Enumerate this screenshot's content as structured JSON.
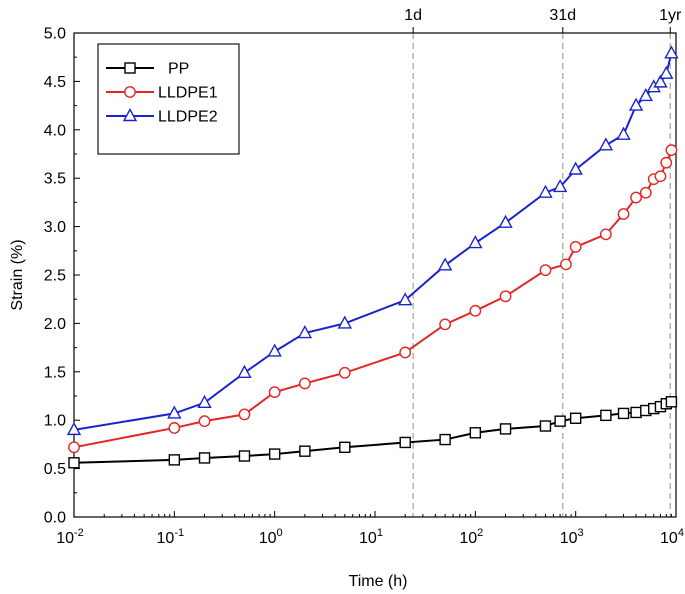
{
  "chart_data": {
    "type": "line",
    "title": "",
    "xlabel": "Time (h)",
    "ylabel": "Strain (%)",
    "x_scale": "log",
    "xlim": [
      0.01,
      10000
    ],
    "ylim": [
      0.0,
      5.0
    ],
    "y_ticks": [
      "0.0",
      "0.5",
      "1.0",
      "1.5",
      "2.0",
      "2.5",
      "3.0",
      "3.5",
      "4.0",
      "4.5",
      "5.0"
    ],
    "x_ticks": [
      {
        "base": "10",
        "exp": "-2"
      },
      {
        "base": "10",
        "exp": "-1"
      },
      {
        "base": "10",
        "exp": "0"
      },
      {
        "base": "10",
        "exp": "1"
      },
      {
        "base": "10",
        "exp": "2"
      },
      {
        "base": "10",
        "exp": "3"
      },
      {
        "base": "10",
        "exp": "4"
      }
    ],
    "reference_lines": [
      {
        "label": "1d",
        "x": 24
      },
      {
        "label": "31d",
        "x": 744
      },
      {
        "label": "1yr",
        "x": 8760
      }
    ],
    "legend_position": "top-left",
    "series": [
      {
        "name": "PP",
        "color": "#000000",
        "marker": "square",
        "x": [
          0.01,
          0.1,
          0.2,
          0.5,
          1,
          2,
          5,
          20,
          50,
          100,
          200,
          500,
          700,
          1000,
          2000,
          3000,
          4000,
          5000,
          6000,
          7000,
          8000,
          9000
        ],
        "y": [
          0.56,
          0.59,
          0.61,
          0.63,
          0.65,
          0.68,
          0.72,
          0.77,
          0.8,
          0.87,
          0.91,
          0.94,
          0.99,
          1.02,
          1.05,
          1.07,
          1.08,
          1.1,
          1.12,
          1.14,
          1.17,
          1.19
        ]
      },
      {
        "name": "LLDPE1",
        "color": "#e32626",
        "marker": "circle",
        "x": [
          0.01,
          0.1,
          0.2,
          0.5,
          1,
          2,
          5,
          20,
          50,
          100,
          200,
          500,
          800,
          1000,
          2000,
          3000,
          4000,
          5000,
          6000,
          7000,
          8000,
          9000
        ],
        "y": [
          0.72,
          0.92,
          0.99,
          1.06,
          1.29,
          1.38,
          1.49,
          1.7,
          1.99,
          2.13,
          2.28,
          2.55,
          2.61,
          2.79,
          2.92,
          3.13,
          3.3,
          3.35,
          3.49,
          3.52,
          3.66,
          3.79
        ]
      },
      {
        "name": "LLDPE2",
        "color": "#1a24cc",
        "marker": "triangle",
        "x": [
          0.01,
          0.1,
          0.2,
          0.5,
          1,
          2,
          5,
          20,
          50,
          100,
          200,
          500,
          700,
          1000,
          2000,
          3000,
          4000,
          5000,
          6000,
          7000,
          8000,
          9000
        ],
        "y": [
          0.9,
          1.07,
          1.18,
          1.49,
          1.71,
          1.9,
          2.0,
          2.24,
          2.6,
          2.83,
          3.04,
          3.35,
          3.41,
          3.59,
          3.84,
          3.95,
          4.25,
          4.35,
          4.44,
          4.49,
          4.58,
          4.79
        ]
      }
    ]
  }
}
